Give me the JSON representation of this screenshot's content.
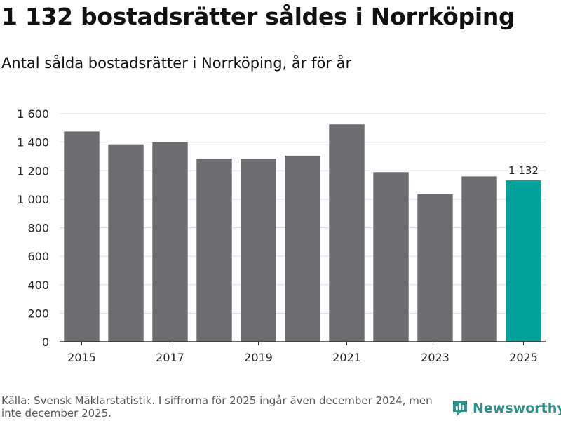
{
  "title": "1 132 bostadsrätter såldes i Norrköping",
  "subtitle": "Antal sålda bostadsrätter i Norrköping, år för år",
  "source_note": "Källa: Svensk Mäklarstatistik. I siffrorna för 2025 ingår även december 2024, men inte december 2025.",
  "brand": {
    "name": "Newsworthy",
    "icon": "newsworthy-logo-icon",
    "color": "#2e9088"
  },
  "colors": {
    "bar": "#6d6c71",
    "highlight": "#00a29a",
    "grid": "#dddddd",
    "axis": "#333333"
  },
  "chart_data": {
    "type": "bar",
    "title": "Antal sålda bostadsrätter i Norrköping, år för år",
    "xlabel": "",
    "ylabel": "",
    "categories": [
      "2015",
      "2016",
      "2017",
      "2018",
      "2019",
      "2020",
      "2021",
      "2022",
      "2023",
      "2024",
      "2025"
    ],
    "x_tick_labels": [
      "2015",
      "2017",
      "2019",
      "2021",
      "2023",
      "2025"
    ],
    "values": [
      1475,
      1385,
      1400,
      1285,
      1285,
      1305,
      1525,
      1190,
      1035,
      1160,
      1132
    ],
    "highlight_index": 10,
    "highlight_label": "1 132",
    "ylim": [
      0,
      1600
    ],
    "y_ticks": [
      0,
      200,
      400,
      600,
      800,
      1000,
      1200,
      1400,
      1600
    ],
    "y_tick_labels": [
      "0",
      "200",
      "400",
      "600",
      "800",
      "1 000",
      "1 200",
      "1 400",
      "1 600"
    ],
    "grid": true
  }
}
